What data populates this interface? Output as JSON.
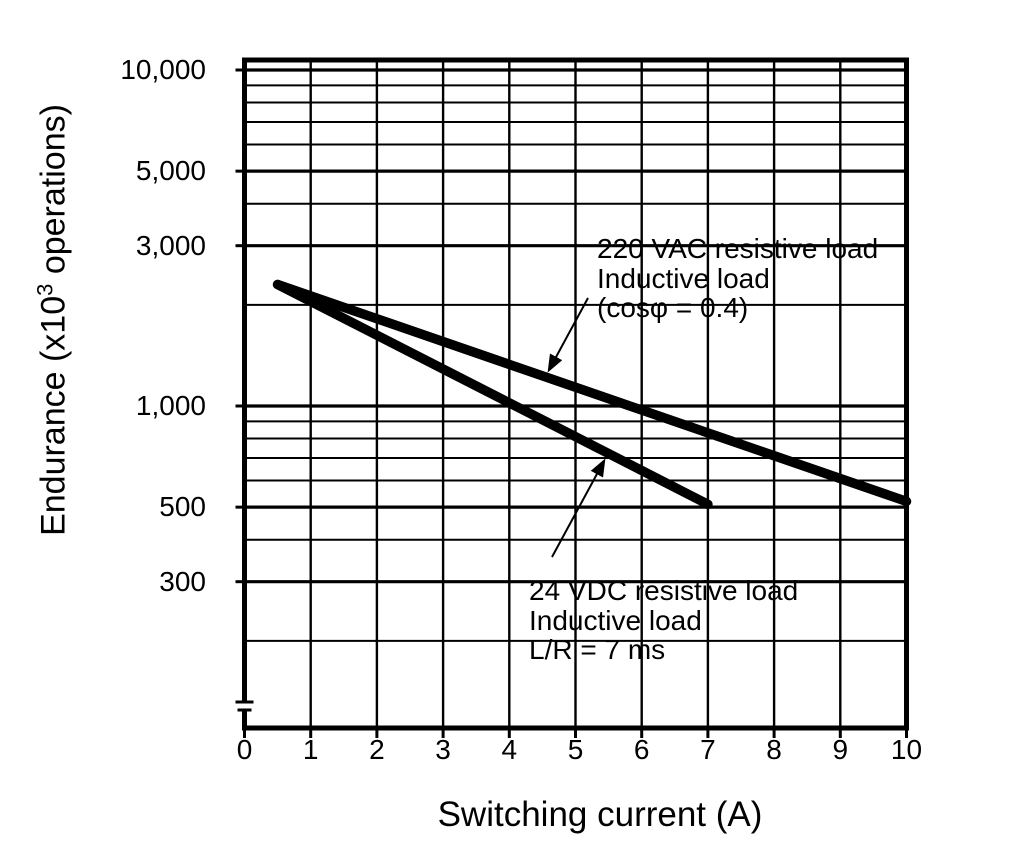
{
  "chart_data": {
    "type": "line",
    "title": "",
    "xlabel": "Switching current (A)",
    "ylabel": {
      "prefix": "Endurance (x10",
      "sup": "3",
      "suffix": " operations)"
    },
    "x_axis": {
      "min": 0,
      "max": 10,
      "tick_labels": [
        "0",
        "1",
        "2",
        "3",
        "4",
        "5",
        "6",
        "7",
        "8",
        "9",
        "10"
      ]
    },
    "y_axis": {
      "scale": "log",
      "unit": "x1000 operations",
      "labeled_ticks": [
        {
          "value": 10000,
          "label": "10,000"
        },
        {
          "value": 5000,
          "label": "5,000"
        },
        {
          "value": 3000,
          "label": "3,000"
        },
        {
          "value": 1000,
          "label": "1,000"
        },
        {
          "value": 500,
          "label": "500"
        },
        {
          "value": 300,
          "label": "300"
        }
      ],
      "minor_gridlines": [
        9000,
        8000,
        7000,
        6000,
        4000,
        2000,
        900,
        800,
        700,
        600,
        400,
        200
      ],
      "range_top": 10700,
      "range_bottom": 110,
      "axis_break_at_bottom": true
    },
    "grid": "on",
    "legend_position": "annotations-inside-plot",
    "series": [
      {
        "id": "220vac",
        "name": "220 VAC resistive load / Inductive load (cosφ = 0.4)",
        "points": [
          [
            0.5,
            2300
          ],
          [
            10,
            520
          ]
        ]
      },
      {
        "id": "24vdc",
        "name": "24 VDC resistive load / Inductive load L/R = 7 ms",
        "points": [
          [
            0.5,
            2300
          ],
          [
            7,
            510
          ]
        ]
      }
    ],
    "annotations": [
      {
        "target_series": "220vac",
        "lines": [
          "220 VAC resistive load",
          "Inductive load",
          "(cosφ = 0.4)"
        ]
      },
      {
        "target_series": "24vdc",
        "lines": [
          "24 VDC resistive load",
          "Inductive load",
          "L/R = 7 ms"
        ]
      }
    ],
    "colors": {
      "ink": "#000000",
      "background": "#ffffff"
    }
  }
}
